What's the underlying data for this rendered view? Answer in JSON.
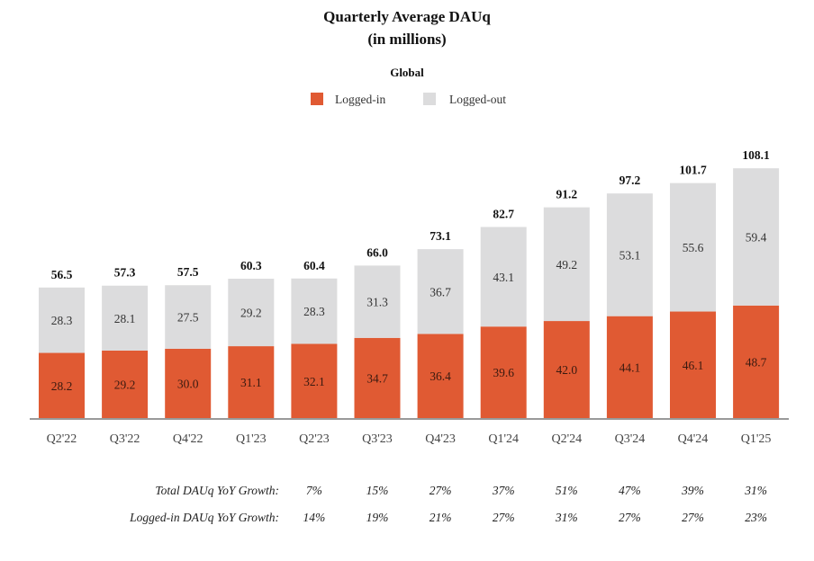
{
  "chart_data": {
    "type": "bar",
    "stacked": true,
    "title": "Quarterly Average DAUq",
    "subtitle": "(in millions)",
    "section_label": "Global",
    "legend": [
      {
        "name": "Logged-in",
        "color": "#E05A33"
      },
      {
        "name": "Logged-out",
        "color": "#DCDCDD"
      }
    ],
    "legend_placement": "top-center",
    "categories": [
      "Q2'22",
      "Q3'22",
      "Q4'22",
      "Q1'23",
      "Q2'23",
      "Q3'23",
      "Q4'23",
      "Q1'24",
      "Q2'24",
      "Q3'24",
      "Q4'24",
      "Q1'25"
    ],
    "series": [
      {
        "name": "Logged-in",
        "values": [
          28.2,
          29.2,
          30.0,
          31.1,
          32.1,
          34.7,
          36.4,
          39.6,
          42.0,
          44.1,
          46.1,
          48.7
        ]
      },
      {
        "name": "Logged-out",
        "values": [
          28.3,
          28.1,
          27.5,
          29.2,
          28.3,
          31.3,
          36.7,
          43.1,
          49.2,
          53.1,
          55.6,
          59.4
        ]
      }
    ],
    "totals": [
      56.5,
      57.3,
      57.5,
      60.3,
      60.4,
      66.0,
      73.1,
      82.7,
      91.2,
      97.2,
      101.7,
      108.1
    ],
    "ylim": [
      0,
      110
    ],
    "grid": false,
    "xlabel": "",
    "ylabel": "",
    "growth_rows": [
      {
        "label": "Total DAUq YoY Growth:",
        "start_index": 4,
        "values": [
          "7%",
          "15%",
          "27%",
          "37%",
          "51%",
          "47%",
          "39%",
          "31%"
        ]
      },
      {
        "label": "Logged-in DAUq YoY Growth:",
        "start_index": 4,
        "values": [
          "14%",
          "19%",
          "21%",
          "27%",
          "31%",
          "27%",
          "27%",
          "23%"
        ]
      }
    ]
  }
}
